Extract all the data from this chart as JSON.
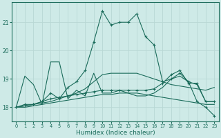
{
  "xlabel": "Humidex (Indice chaleur)",
  "background_color": "#ceeae7",
  "line_color": "#1a6b5a",
  "grid_color": "#b8d8d4",
  "xlim": [
    -0.5,
    23.5
  ],
  "ylim": [
    17.5,
    21.7
  ],
  "yticks": [
    18,
    19,
    20,
    21
  ],
  "xticks": [
    0,
    1,
    2,
    3,
    4,
    5,
    6,
    7,
    8,
    9,
    10,
    11,
    12,
    13,
    14,
    15,
    16,
    17,
    18,
    19,
    20,
    21,
    22,
    23
  ],
  "series_main": [
    18.0,
    18.1,
    18.1,
    18.2,
    18.5,
    18.3,
    18.7,
    18.9,
    19.3,
    20.3,
    21.4,
    20.9,
    21.0,
    21.0,
    21.3,
    20.5,
    20.2,
    18.9,
    19.0,
    19.2,
    18.9,
    18.2,
    18.0,
    17.7
  ],
  "series_jagged": [
    18.0,
    19.1,
    18.8,
    18.1,
    19.6,
    19.6,
    18.3,
    18.6,
    18.4,
    19.2,
    18.5,
    18.5,
    18.6,
    18.5,
    18.4,
    18.4,
    18.5,
    18.7,
    19.0,
    19.1,
    18.9,
    18.8,
    18.2,
    18.2
  ],
  "series_lower_flat": [
    18.0,
    18.0,
    18.05,
    18.1,
    18.15,
    18.2,
    18.25,
    18.3,
    18.35,
    18.4,
    18.45,
    18.45,
    18.5,
    18.5,
    18.5,
    18.45,
    18.4,
    18.35,
    18.3,
    18.25,
    18.2,
    18.15,
    18.1,
    18.1
  ],
  "series_upper_band": [
    18.0,
    18.05,
    18.1,
    18.15,
    18.2,
    18.3,
    18.4,
    18.5,
    18.65,
    18.9,
    19.15,
    19.2,
    19.2,
    19.2,
    19.2,
    19.1,
    19.0,
    18.9,
    18.8,
    18.75,
    18.7,
    18.65,
    18.6,
    18.7
  ],
  "series_right_jagged": [
    18.0,
    18.05,
    18.1,
    18.2,
    18.3,
    18.35,
    18.4,
    18.45,
    18.5,
    18.55,
    18.6,
    18.6,
    18.6,
    18.6,
    18.6,
    18.6,
    18.65,
    18.85,
    19.15,
    19.3,
    18.85,
    18.85,
    18.2,
    18.2
  ]
}
